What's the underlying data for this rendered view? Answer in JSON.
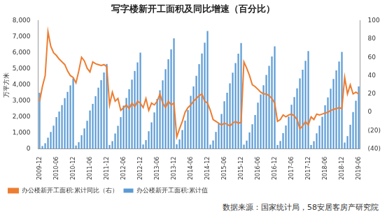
{
  "chart_data": {
    "type": "bar",
    "title": "写字楼新开工面积及同比增速（百分比）",
    "ylabel": "万平方米",
    "source": "数据来源：国家统计局，58安居客房产研究院",
    "categories": [
      "2009-12",
      null,
      null,
      null,
      null,
      null,
      "2010-06",
      null,
      null,
      null,
      null,
      null,
      "2010-12",
      null,
      null,
      null,
      null,
      null,
      "2011-06",
      null,
      null,
      null,
      null,
      null,
      "2011-12",
      null,
      null,
      null,
      null,
      null,
      "2012-06",
      null,
      null,
      null,
      null,
      null,
      "2012-12",
      null,
      null,
      null,
      null,
      null,
      "2013-06",
      null,
      null,
      null,
      null,
      null,
      "2013-12",
      null,
      null,
      null,
      null,
      null,
      "2014-06",
      null,
      null,
      null,
      null,
      null,
      "2014-12",
      null,
      null,
      null,
      null,
      null,
      "2015-06",
      null,
      null,
      null,
      null,
      null,
      "2015-12",
      null,
      null,
      null,
      null,
      null,
      "2016-06",
      null,
      null,
      null,
      null,
      null,
      "2016-12",
      null,
      null,
      null,
      null,
      null,
      "2017-06",
      null,
      null,
      null,
      null,
      null,
      "2017-12",
      null,
      null,
      null,
      null,
      null,
      "2018-06",
      null,
      null,
      null,
      null,
      null,
      "2018-12",
      null,
      null,
      null,
      null,
      null,
      "2019-06"
    ],
    "series": [
      {
        "name": "办公楼新开工面积:累计值",
        "type": "bar",
        "color": "#5b9bd5",
        "values": [
          3500,
          180,
          350,
          700,
          1060,
          1450,
          1980,
          2330,
          2730,
          3170,
          3560,
          3960,
          4400,
          210,
          420,
          850,
          1270,
          1750,
          2390,
          2810,
          3290,
          3820,
          4290,
          4770,
          5300,
          240,
          480,
          960,
          1440,
          1980,
          2700,
          3180,
          3720,
          4320,
          4860,
          5400,
          6000,
          280,
          550,
          1100,
          1660,
          2280,
          3110,
          3660,
          4280,
          4970,
          5590,
          6210,
          6900,
          290,
          590,
          1180,
          1760,
          2430,
          3310,
          3900,
          4560,
          5290,
          5950,
          6620,
          7350,
          260,
          530,
          1060,
          1580,
          2180,
          2970,
          3500,
          4090,
          4750,
          5350,
          5940,
          6600,
          260,
          510,
          1020,
          1540,
          2110,
          2880,
          3390,
          3970,
          4610,
          5180,
          5760,
          6400,
          240,
          490,
          980,
          1460,
          2010,
          2750,
          3230,
          3780,
          4390,
          4940,
          5490,
          6100,
          240,
          480,
          970,
          1450,
          2000,
          2720,
          3210,
          3750,
          4360,
          4900,
          5450,
          6050,
          400,
          800,
          1500,
          2300,
          3000,
          3900
        ]
      },
      {
        "name": "办公楼新开工面积:累计同比（右）",
        "type": "line",
        "axis": "y2",
        "color": "#ed7d31",
        "values": [
          12,
          28,
          40,
          88,
          72,
          65,
          62,
          58,
          55,
          52,
          45,
          40,
          38,
          32,
          45,
          60,
          56,
          48,
          44,
          55,
          53,
          52,
          51,
          52,
          50,
          8,
          22,
          12,
          15,
          2,
          5,
          8,
          4,
          10,
          6,
          12,
          10,
          5,
          15,
          2,
          10,
          8,
          12,
          20,
          10,
          5,
          12,
          8,
          10,
          -27,
          -18,
          -10,
          0,
          5,
          8,
          12,
          15,
          18,
          20,
          12,
          10,
          2,
          -8,
          -10,
          -12,
          -14,
          -12,
          -13,
          -15,
          -12,
          -10,
          -12,
          -11,
          55,
          48,
          40,
          30,
          28,
          25,
          22,
          20,
          20,
          18,
          15,
          10,
          -10,
          -8,
          -3,
          -5,
          -3,
          -2,
          -4,
          -8,
          -18,
          -15,
          -10,
          -14,
          -5,
          -8,
          -2,
          -3,
          -2,
          -1,
          0,
          2,
          3,
          4,
          5,
          4,
          38,
          20,
          30,
          20,
          22,
          20
        ]
      }
    ],
    "ylim": [
      0,
      8000
    ],
    "yticks": [
      0,
      {
        "value": 1000,
        "label": "1,000"
      },
      {
        "value": 2000,
        "label": "2,000"
      },
      {
        "value": 3000,
        "label": "3,000"
      },
      {
        "value": 4000,
        "label": "4,000"
      },
      {
        "value": 5000,
        "label": "5,000"
      },
      {
        "value": 6000,
        "label": "6,000"
      },
      {
        "value": 7000,
        "label": "7,000"
      },
      {
        "value": 8000,
        "label": "8,000"
      }
    ],
    "y2lim": [
      -40,
      100
    ],
    "y2ticks": [
      {
        "value": -40,
        "label": "(40)"
      },
      {
        "value": -20,
        "label": "(20)"
      },
      0,
      20,
      40,
      60,
      80,
      100
    ],
    "grid": false,
    "legend": "bottom"
  }
}
